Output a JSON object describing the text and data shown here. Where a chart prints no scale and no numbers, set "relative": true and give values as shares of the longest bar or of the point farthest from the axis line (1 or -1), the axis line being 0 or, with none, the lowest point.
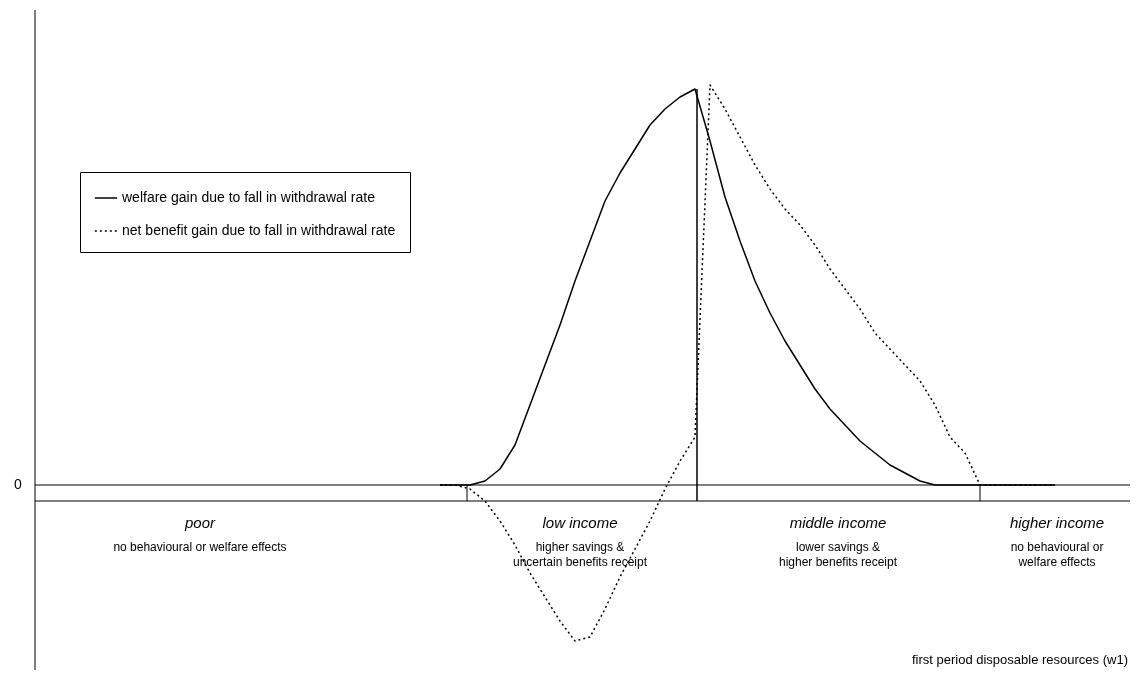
{
  "chart_data": {
    "type": "line",
    "relative": true,
    "xlabel": "first period disposable resources (w1)",
    "categories": [
      null,
      null,
      null,
      null,
      null,
      null,
      null,
      null,
      null,
      null,
      null,
      null,
      null,
      null,
      null,
      null,
      null,
      null,
      null,
      null,
      null,
      null,
      null,
      null,
      null,
      null,
      null,
      null,
      null,
      null,
      null,
      null,
      null,
      null,
      null,
      null,
      null,
      null,
      null,
      null,
      null,
      null
    ],
    "series": [
      {
        "name": "welfare gain due to fall in withdrawal rate",
        "color": "#000000",
        "line_style": "solid",
        "values": [
          0,
          0,
          0,
          0.01,
          0.04,
          0.1,
          0.2,
          0.3,
          0.4,
          0.51,
          0.61,
          0.71,
          0.78,
          0.84,
          0.9,
          0.94,
          0.97,
          0.99,
          0.86,
          0.72,
          0.61,
          0.51,
          0.43,
          0.36,
          0.3,
          0.24,
          0.19,
          0.15,
          0.11,
          0.08,
          0.05,
          0.03,
          0.01,
          0,
          0,
          0,
          0,
          0,
          0,
          0,
          0,
          0
        ]
      },
      {
        "name": "net benefit gain due to fall in withdrawal rate",
        "color": "#000000",
        "line_style": "dotted",
        "values": [
          0,
          0,
          -0.01,
          -0.04,
          -0.09,
          -0.15,
          -0.22,
          -0.28,
          -0.34,
          -0.39,
          -0.38,
          -0.31,
          -0.23,
          -0.16,
          -0.09,
          -0.01,
          0.06,
          0.12,
          1.0,
          0.94,
          0.87,
          0.8,
          0.74,
          0.69,
          0.65,
          0.6,
          0.54,
          0.49,
          0.44,
          0.38,
          0.34,
          0.3,
          0.26,
          0.2,
          0.12,
          0.08,
          0,
          0,
          0,
          0,
          0,
          0
        ]
      }
    ],
    "legend": "top left",
    "ref_lines": [
      {
        "axis": "y",
        "value": -0.04,
        "color": "#000000",
        "line_style": "solid"
      }
    ],
    "annotations": [
      "0",
      "poor",
      "no behavioural or welfare effects",
      "low income",
      "higher savings &\nuncertain benefits receipt",
      "middle income",
      "lower savings &\nhigher benefits receipt",
      "higher income",
      "no behavioural or\nwelfare effects"
    ]
  }
}
